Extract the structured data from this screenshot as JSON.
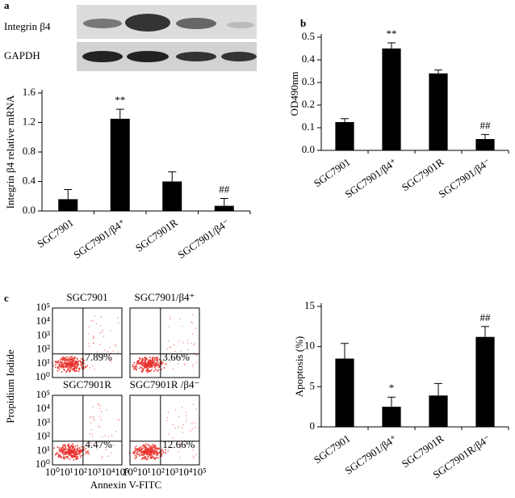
{
  "blot": {
    "labels": [
      "Integrin β4",
      "GAPDH"
    ]
  },
  "chart_data": [
    {
      "type": "bar",
      "panel_label": "a",
      "ylabel": "Integrin β4 relative mRNA",
      "categories": [
        "SGC7901",
        "SGC7901/β4⁺",
        "SGC7901R",
        "SGC7901/β4⁻"
      ],
      "values": [
        0.16,
        1.25,
        0.4,
        0.07
      ],
      "errors": [
        0.13,
        0.13,
        0.13,
        0.1
      ],
      "annotations": [
        null,
        "**",
        null,
        "##"
      ],
      "color": "#000000",
      "ylim": [
        0,
        1.6
      ],
      "yticks": [
        {
          "value": 0,
          "label": "0.0"
        },
        0.4,
        0.8,
        1.2,
        1.6
      ]
    },
    {
      "type": "bar",
      "panel_label": "b",
      "ylabel": "OD490nm",
      "categories": [
        "SGC7901",
        "SGC7901/β4⁺",
        "SGC7901R",
        "SGC7901/β4⁻"
      ],
      "values": [
        0.125,
        0.45,
        0.34,
        0.05
      ],
      "errors": [
        0.015,
        0.025,
        0.015,
        0.02
      ],
      "annotations": [
        null,
        "**",
        null,
        "##"
      ],
      "color": "#000000",
      "ylim": [
        0,
        0.5
      ],
      "yticks": [
        {
          "value": 0,
          "label": "0.0"
        },
        0.1,
        0.2,
        0.3,
        0.4,
        0.5
      ]
    },
    {
      "type": "flow",
      "panel_label": "c",
      "xlabel": "Annexin V-FITC",
      "ylabel": "Propidium Iodide",
      "log": true,
      "xlim": [
        1,
        100000
      ],
      "ylim": [
        1,
        100000
      ],
      "color": "#e8302a",
      "xticks": [
        {
          "value": 1,
          "label": "10⁰"
        },
        {
          "value": 10,
          "label": "10¹"
        },
        {
          "value": 100,
          "label": "10²"
        },
        {
          "value": 1000,
          "label": "10³"
        },
        {
          "value": 10000,
          "label": "10⁴"
        },
        {
          "value": 100000,
          "label": "10⁵"
        }
      ],
      "yticks": [
        {
          "value": 1,
          "label": "10⁰"
        },
        {
          "value": 10,
          "label": "10¹"
        },
        {
          "value": 100,
          "label": "10²"
        },
        {
          "value": 1000,
          "label": "10³"
        },
        {
          "value": 10000,
          "label": "10⁴"
        },
        {
          "value": 100000,
          "label": "10⁵"
        }
      ],
      "panels": [
        {
          "title": "SGC7901",
          "quadrant_label": "7.89%"
        },
        {
          "title": "SGC7901/β4⁺",
          "quadrant_label": "3.66%"
        },
        {
          "title": "SGC7901R",
          "quadrant_label": "4.47%"
        },
        {
          "title": "SGC7901R /β4⁻",
          "quadrant_label": "12.66%"
        }
      ]
    },
    {
      "type": "bar",
      "ylabel": "Apoptosis (%)",
      "categories": [
        "SGC7901",
        "SGC7901/β4⁺",
        "SGC7901R",
        "SGC7901R/β4⁻"
      ],
      "values": [
        8.5,
        2.5,
        3.9,
        11.2
      ],
      "errors": [
        1.9,
        1.2,
        1.5,
        1.3
      ],
      "annotations": [
        null,
        "*",
        null,
        "##"
      ],
      "color": "#000000",
      "ylim": [
        0,
        15
      ],
      "yticks": [
        0,
        5,
        10,
        15
      ]
    }
  ]
}
